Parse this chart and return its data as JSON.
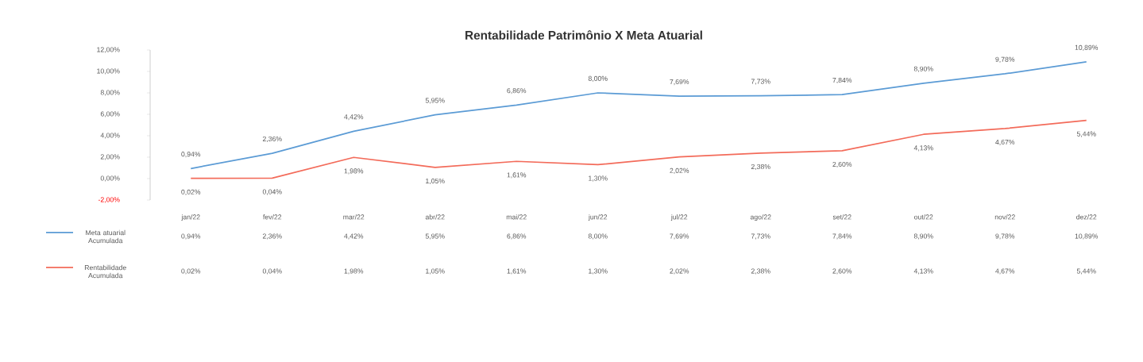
{
  "chart_data": {
    "type": "line",
    "title": "Rentabilidade Patrimônio X Meta Atuarial",
    "categories": [
      "jan/22",
      "fev/22",
      "mar/22",
      "abr/22",
      "mai/22",
      "jun/22",
      "jul/22",
      "ago/22",
      "set/22",
      "out/22",
      "nov/22",
      "dez/22"
    ],
    "series": [
      {
        "name": "Meta atuarial Acumulada",
        "color": "#5b9bd5",
        "values": [
          0.94,
          2.36,
          4.42,
          5.95,
          6.86,
          8.0,
          7.69,
          7.73,
          7.84,
          8.9,
          9.78,
          10.89
        ],
        "value_labels": [
          "0,94%",
          "2,36%",
          "4,42%",
          "5,95%",
          "6,86%",
          "8,00%",
          "7,69%",
          "7,73%",
          "7,84%",
          "8,90%",
          "9,78%",
          "10,89%"
        ]
      },
      {
        "name": "Rentabilidade Acumulada",
        "color": "#f36b5a",
        "values": [
          0.02,
          0.04,
          1.98,
          1.05,
          1.61,
          1.3,
          2.02,
          2.38,
          2.6,
          4.13,
          4.67,
          5.44
        ],
        "value_labels": [
          "0,02%",
          "0,04%",
          "1,98%",
          "1,05%",
          "1,61%",
          "1,30%",
          "2,02%",
          "2,38%",
          "2,60%",
          "4,13%",
          "4,67%",
          "5,44%"
        ]
      }
    ],
    "ylim": [
      -2,
      12
    ],
    "yticks": [
      {
        "value": -2,
        "label": "-2,00%"
      },
      {
        "value": 0,
        "label": "0,00%"
      },
      {
        "value": 2,
        "label": "2,00%"
      },
      {
        "value": 4,
        "label": "4,00%"
      },
      {
        "value": 6,
        "label": "6,00%"
      },
      {
        "value": 8,
        "label": "8,00%"
      },
      {
        "value": 10,
        "label": "10,00%"
      },
      {
        "value": 12,
        "label": "12,00%"
      }
    ],
    "grid": false,
    "legend": "bottom left",
    "line_style": "solid"
  }
}
